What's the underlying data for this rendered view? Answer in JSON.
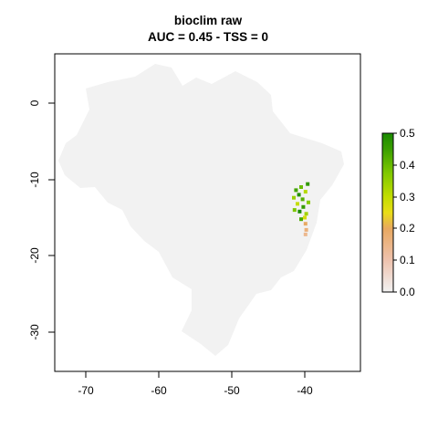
{
  "title": "bioclim raw",
  "subtitle": "AUC = 0.45 - TSS = 0",
  "colors": {
    "background": "#ffffff",
    "country_fill": "#f2f2f2",
    "frame": "#000000",
    "ramp": [
      "#f2f2f2",
      "#eec2ae",
      "#e8a860",
      "#e9dd17",
      "#c2dd00",
      "#7fc800",
      "#3a9f00",
      "#1a8a00"
    ]
  },
  "map": {
    "region": "Brazil",
    "x_ticks": [
      "-70",
      "-60",
      "-50",
      "-40"
    ],
    "y_ticks": [
      "0",
      "-10",
      "-20",
      "-30"
    ]
  },
  "chart_data": {
    "type": "heatmap",
    "title": "bioclim raw",
    "subtitle": "AUC = 0.45 - TSS = 0",
    "xlim": [
      -74,
      -34
    ],
    "ylim": [
      -35,
      6
    ],
    "x_ticks": [
      -70,
      -60,
      -50,
      -40
    ],
    "y_ticks": [
      0,
      -10,
      -20,
      -30
    ],
    "legend": {
      "placement": "right",
      "min": 0.0,
      "max": 0.5,
      "ticks": [
        "0.5",
        "0.4",
        "0.3",
        "0.2",
        "0.1",
        "0.0"
      ],
      "tick_values": [
        0.5,
        0.4,
        0.3,
        0.2,
        0.1,
        0.0
      ]
    },
    "cells": [
      {
        "x": -39.6,
        "y": -10.6,
        "value": 0.45
      },
      {
        "x": -40.5,
        "y": -11.0,
        "value": 0.38
      },
      {
        "x": -41.2,
        "y": -11.4,
        "value": 0.42
      },
      {
        "x": -39.9,
        "y": -11.6,
        "value": 0.3
      },
      {
        "x": -40.8,
        "y": -12.0,
        "value": 0.48
      },
      {
        "x": -41.5,
        "y": -12.4,
        "value": 0.33
      },
      {
        "x": -40.3,
        "y": -12.6,
        "value": 0.4
      },
      {
        "x": -39.5,
        "y": -13.0,
        "value": 0.35
      },
      {
        "x": -41.0,
        "y": -13.2,
        "value": 0.28
      },
      {
        "x": -40.2,
        "y": -13.6,
        "value": 0.44
      },
      {
        "x": -41.4,
        "y": -14.0,
        "value": 0.36
      },
      {
        "x": -40.7,
        "y": -14.2,
        "value": 0.5
      },
      {
        "x": -39.8,
        "y": -14.5,
        "value": 0.32
      },
      {
        "x": -40.0,
        "y": -15.0,
        "value": 0.25
      },
      {
        "x": -40.5,
        "y": -15.2,
        "value": 0.41
      },
      {
        "x": -39.9,
        "y": -15.8,
        "value": 0.14
      },
      {
        "x": -39.8,
        "y": -16.6,
        "value": 0.12
      },
      {
        "x": -39.9,
        "y": -17.2,
        "value": 0.1
      }
    ]
  }
}
